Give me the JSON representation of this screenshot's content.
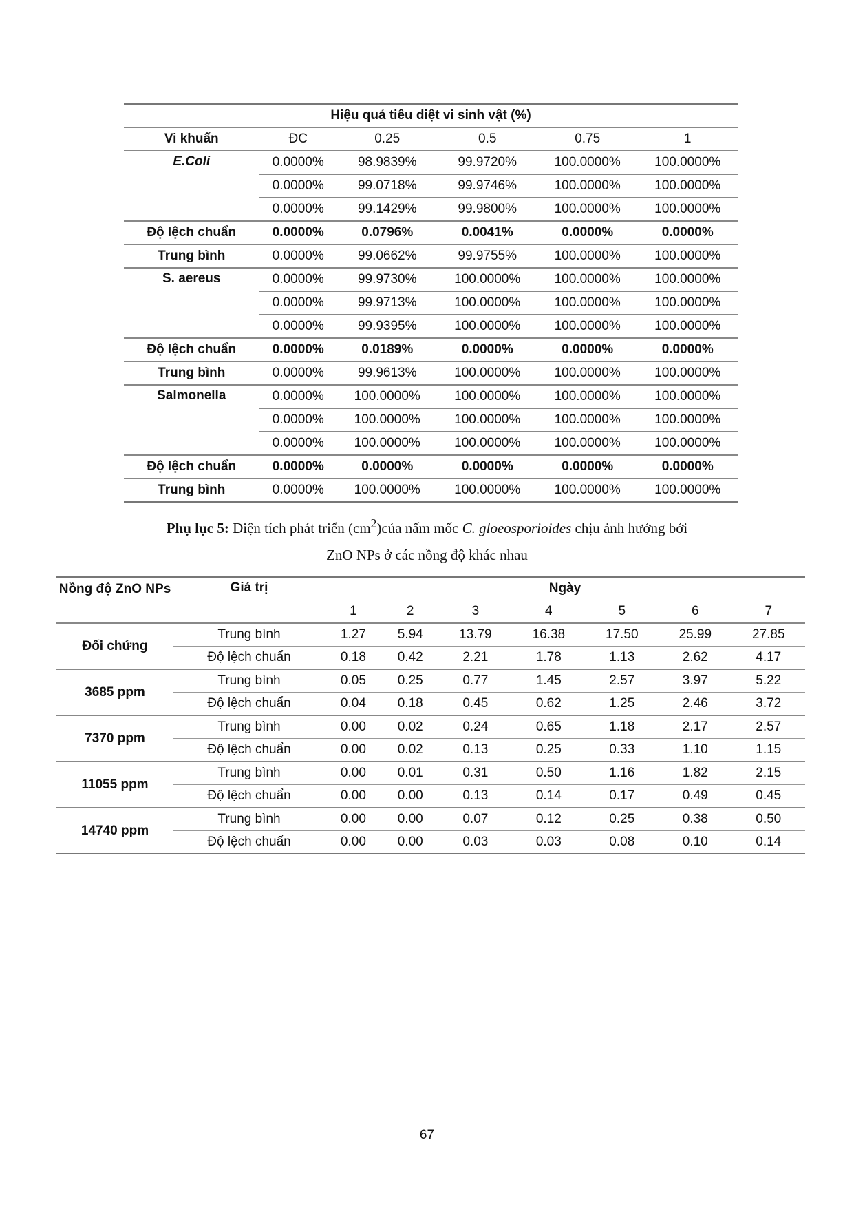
{
  "table1": {
    "title": "Hiệu quả tiêu diệt vi sinh vật (%)",
    "headers": [
      "Vi khuẩn",
      "ĐC",
      "0.25",
      "0.5",
      "0.75",
      "1"
    ],
    "groups": [
      {
        "name": "E.Coli",
        "rows": [
          [
            "0.0000%",
            "98.9839%",
            "99.9720%",
            "100.0000%",
            "100.0000%"
          ],
          [
            "0.0000%",
            "99.0718%",
            "99.9746%",
            "100.0000%",
            "100.0000%"
          ],
          [
            "0.0000%",
            "99.1429%",
            "99.9800%",
            "100.0000%",
            "100.0000%"
          ]
        ],
        "sd_label": "Độ lệch chuẩn",
        "sd": [
          "0.0000%",
          "0.0796%",
          "0.0041%",
          "0.0000%",
          "0.0000%"
        ],
        "mean_label": "Trung bình",
        "mean": [
          "0.0000%",
          "99.0662%",
          "99.9755%",
          "100.0000%",
          "100.0000%"
        ]
      },
      {
        "name": "S. aereus",
        "rows": [
          [
            "0.0000%",
            "99.9730%",
            "100.0000%",
            "100.0000%",
            "100.0000%"
          ],
          [
            "0.0000%",
            "99.9713%",
            "100.0000%",
            "100.0000%",
            "100.0000%"
          ],
          [
            "0.0000%",
            "99.9395%",
            "100.0000%",
            "100.0000%",
            "100.0000%"
          ]
        ],
        "sd_label": "Độ lệch chuẩn",
        "sd": [
          "0.0000%",
          "0.0189%",
          "0.0000%",
          "0.0000%",
          "0.0000%"
        ],
        "mean_label": "Trung bình",
        "mean": [
          "0.0000%",
          "99.9613%",
          "100.0000%",
          "100.0000%",
          "100.0000%"
        ]
      },
      {
        "name": "Salmonella",
        "rows": [
          [
            "0.0000%",
            "100.0000%",
            "100.0000%",
            "100.0000%",
            "100.0000%"
          ],
          [
            "0.0000%",
            "100.0000%",
            "100.0000%",
            "100.0000%",
            "100.0000%"
          ],
          [
            "0.0000%",
            "100.0000%",
            "100.0000%",
            "100.0000%",
            "100.0000%"
          ]
        ],
        "sd_label": "Độ lệch chuẩn",
        "sd": [
          "0.0000%",
          "0.0000%",
          "0.0000%",
          "0.0000%",
          "0.0000%"
        ],
        "mean_label": "Trung bình",
        "mean": [
          "0.0000%",
          "100.0000%",
          "100.0000%",
          "100.0000%",
          "100.0000%"
        ]
      }
    ]
  },
  "caption": {
    "bold": "Phụ lục 5:",
    "part1": " Diện tích phát triển (cm",
    "sup": "2",
    "part2": ")của nấm mốc ",
    "italic": "C. gloeosporioides",
    "part3": " chịu ảnh hưởng bởi",
    "line2": "ZnO NPs ở các nồng độ khác nhau"
  },
  "table2": {
    "h_conc": "Nồng độ ZnO NPs",
    "h_value": "Giá trị",
    "h_day": "Ngày",
    "days": [
      "1",
      "2",
      "3",
      "4",
      "5",
      "6",
      "7"
    ],
    "groups": [
      {
        "name": "Đối chứng",
        "rows": [
          {
            "label": "Trung bình",
            "values": [
              "1.27",
              "5.94",
              "13.79",
              "16.38",
              "17.50",
              "25.99",
              "27.85"
            ]
          },
          {
            "label": "Độ lệch chuẩn",
            "values": [
              "0.18",
              "0.42",
              "2.21",
              "1.78",
              "1.13",
              "2.62",
              "4.17"
            ]
          }
        ]
      },
      {
        "name": "3685 ppm",
        "rows": [
          {
            "label": "Trung bình",
            "values": [
              "0.05",
              "0.25",
              "0.77",
              "1.45",
              "2.57",
              "3.97",
              "5.22"
            ]
          },
          {
            "label": "Độ lệch chuẩn",
            "values": [
              "0.04",
              "0.18",
              "0.45",
              "0.62",
              "1.25",
              "2.46",
              "3.72"
            ]
          }
        ]
      },
      {
        "name": "7370 ppm",
        "rows": [
          {
            "label": "Trung bình",
            "values": [
              "0.00",
              "0.02",
              "0.24",
              "0.65",
              "1.18",
              "2.17",
              "2.57"
            ]
          },
          {
            "label": "Độ lệch chuẩn",
            "values": [
              "0.00",
              "0.02",
              "0.13",
              "0.25",
              "0.33",
              "1.10",
              "1.15"
            ]
          }
        ]
      },
      {
        "name": "11055 ppm",
        "rows": [
          {
            "label": "Trung bình",
            "values": [
              "0.00",
              "0.01",
              "0.31",
              "0.50",
              "1.16",
              "1.82",
              "2.15"
            ]
          },
          {
            "label": "Độ lệch chuẩn",
            "values": [
              "0.00",
              "0.00",
              "0.13",
              "0.14",
              "0.17",
              "0.49",
              "0.45"
            ]
          }
        ]
      },
      {
        "name": "14740 ppm",
        "rows": [
          {
            "label": "Trung bình",
            "values": [
              "0.00",
              "0.00",
              "0.07",
              "0.12",
              "0.25",
              "0.38",
              "0.50"
            ]
          },
          {
            "label": "Độ lệch chuẩn",
            "values": [
              "0.00",
              "0.00",
              "0.03",
              "0.03",
              "0.08",
              "0.10",
              "0.14"
            ]
          }
        ]
      }
    ]
  },
  "page_number": "67"
}
